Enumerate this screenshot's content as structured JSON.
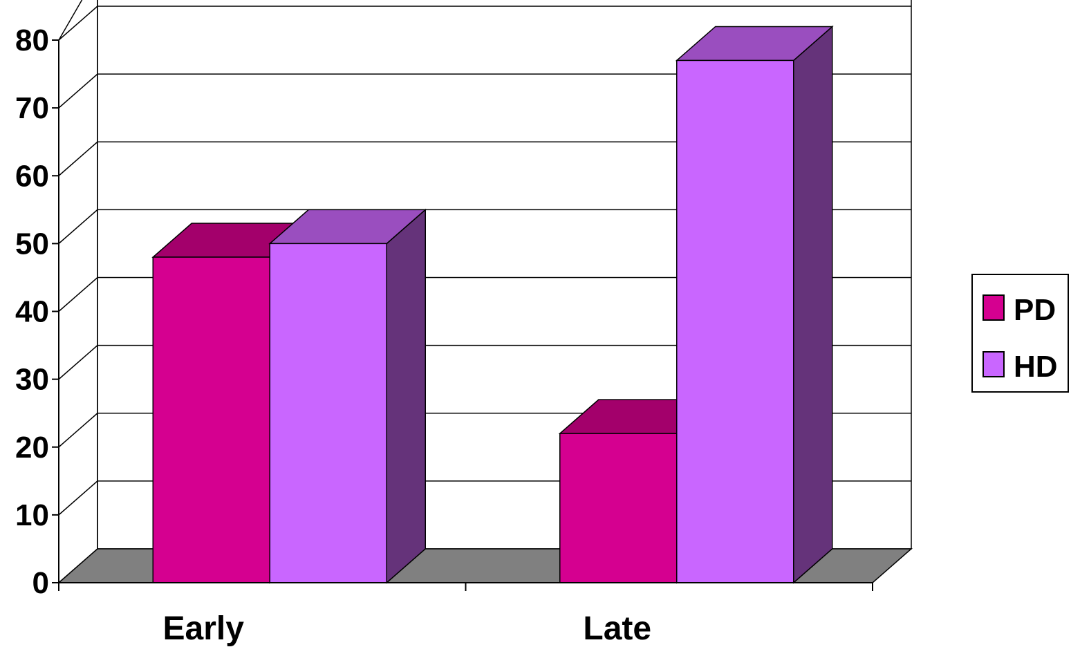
{
  "chart_data": {
    "type": "bar",
    "categories": [
      "Early",
      "Late"
    ],
    "series": [
      {
        "name": "PD",
        "values": [
          48,
          22
        ],
        "color": "#d50090",
        "top_color": "#a3006b",
        "side_color": "#8a005c"
      },
      {
        "name": "HD",
        "values": [
          50,
          77
        ],
        "color": "#c966ff",
        "top_color": "#9a4ebf",
        "side_color": "#65337a"
      }
    ],
    "title": "",
    "xlabel": "",
    "ylabel": "",
    "ylim": [
      0,
      80
    ],
    "yticks": [
      "0",
      "10",
      "20",
      "30",
      "40",
      "50",
      "60",
      "70",
      "80"
    ],
    "grid": true,
    "legend_position": "right",
    "floor_color": "#808080"
  }
}
